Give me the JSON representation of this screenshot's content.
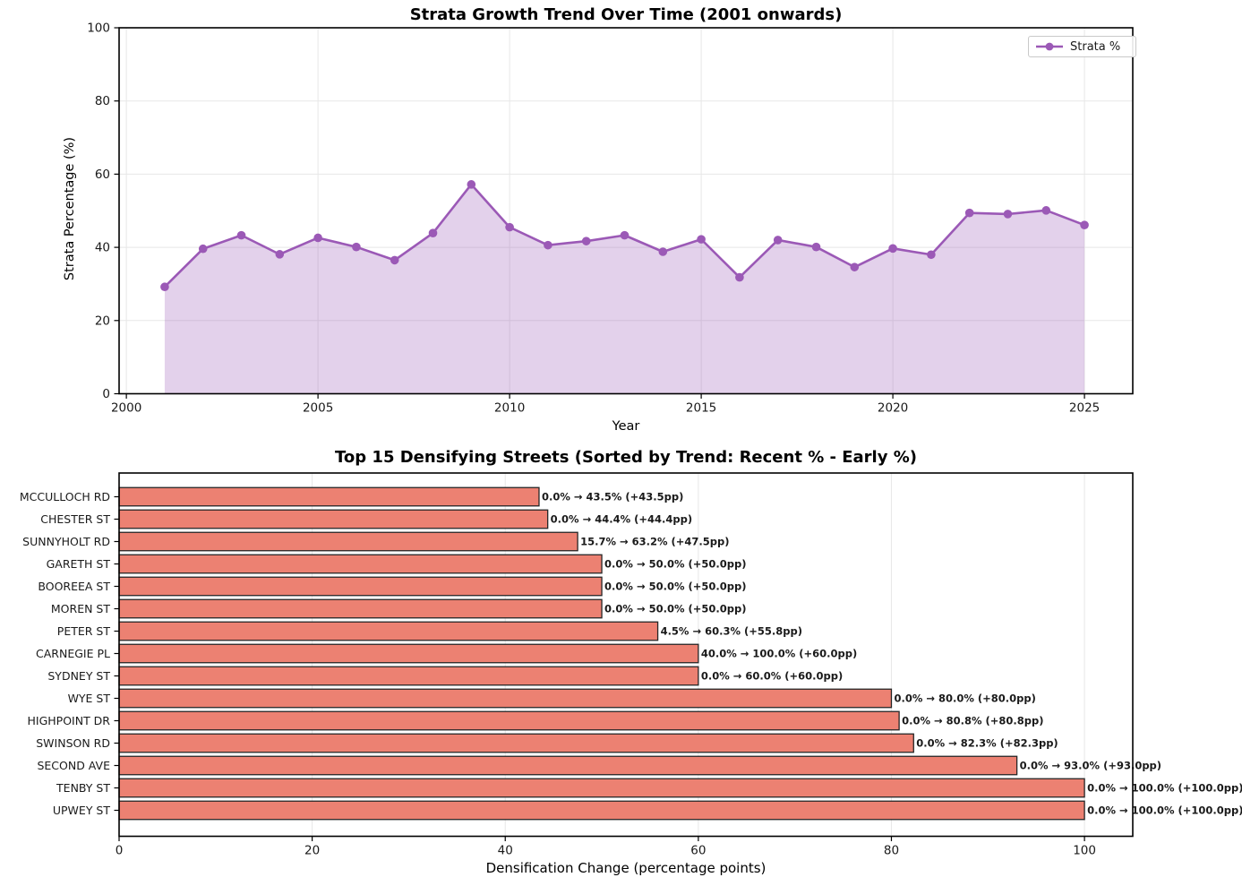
{
  "chart_data": [
    {
      "type": "area",
      "title": "Strata Growth Trend Over Time (2001 onwards)",
      "xlabel": "Year",
      "ylabel": "Strata Percentage (%)",
      "legend": [
        {
          "label": "Strata %",
          "marker": "circle-line"
        }
      ],
      "legend_position": "upper right",
      "x": [
        2001,
        2002,
        2003,
        2004,
        2005,
        2006,
        2007,
        2008,
        2009,
        2010,
        2011,
        2012,
        2013,
        2014,
        2015,
        2016,
        2017,
        2018,
        2019,
        2020,
        2021,
        2022,
        2023,
        2024,
        2025
      ],
      "series": [
        {
          "name": "Strata %",
          "values": [
            29.2,
            39.6,
            43.3,
            38.1,
            42.6,
            40.1,
            36.5,
            43.9,
            57.2,
            45.5,
            40.6,
            41.7,
            43.3,
            38.8,
            42.2,
            31.8,
            42.0,
            40.1,
            34.6,
            39.7,
            38.0,
            49.4,
            49.1,
            50.1,
            46.1
          ]
        }
      ],
      "xlim": [
        1999.81,
        2026.26
      ],
      "ylim": [
        0,
        100
      ],
      "xticks": [
        2000,
        2005,
        2010,
        2015,
        2020,
        2025
      ],
      "yticks": [
        0,
        20,
        40,
        60,
        80,
        100
      ],
      "grid": true,
      "colors": {
        "line": "#9b59b6",
        "fill": "rgba(155,89,182,0.28)",
        "grid": "#e7e7e7",
        "spine": "#000000"
      }
    },
    {
      "type": "bar",
      "orientation": "horizontal",
      "title": "Top 15 Densifying Streets (Sorted by Trend: Recent % - Early %)",
      "xlabel": "Densification Change (percentage points)",
      "categories": [
        "MCCULLOCH RD",
        "CHESTER ST",
        "SUNNYHOLT RD",
        "GARETH ST",
        "BOOREEA ST",
        "MOREN ST",
        "PETER ST",
        "CARNEGIE PL",
        "SYDNEY ST",
        "WYE ST",
        "HIGHPOINT DR",
        "SWINSON RD",
        "SECOND AVE",
        "TENBY ST",
        "UPWEY ST"
      ],
      "values": [
        43.5,
        44.4,
        47.5,
        50.0,
        50.0,
        50.0,
        55.8,
        60.0,
        60.0,
        80.0,
        80.8,
        82.3,
        93.0,
        100.0,
        100.0
      ],
      "bar_labels": [
        "0.0% → 43.5% (+43.5pp)",
        "0.0% → 44.4% (+44.4pp)",
        "15.7% → 63.2% (+47.5pp)",
        "0.0% → 50.0% (+50.0pp)",
        "0.0% → 50.0% (+50.0pp)",
        "0.0% → 50.0% (+50.0pp)",
        "4.5% → 60.3% (+55.8pp)",
        "40.0% → 100.0% (+60.0pp)",
        "0.0% → 60.0% (+60.0pp)",
        "0.0% → 80.0% (+80.0pp)",
        "0.0% → 80.8% (+80.8pp)",
        "0.0% → 82.3% (+82.3pp)",
        "0.0% → 93.0% (+93.0pp)",
        "0.0% → 100.0% (+100.0pp)",
        "0.0% → 100.0% (+100.0pp)"
      ],
      "xlim": [
        0,
        105
      ],
      "xticks": [
        0,
        20,
        40,
        60,
        80,
        100
      ],
      "grid": true,
      "colors": {
        "bar": "#ec8172",
        "bar_edge": "#262626",
        "grid": "#e7e7e7",
        "spine": "#000000"
      }
    }
  ]
}
